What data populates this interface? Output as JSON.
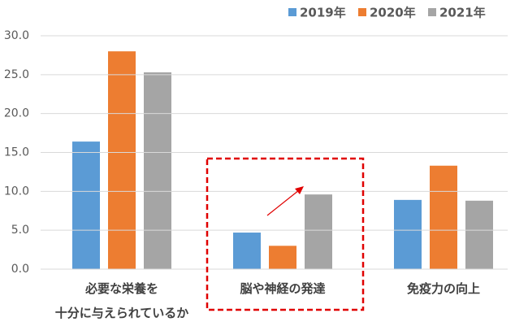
{
  "chart_data": {
    "type": "bar",
    "categories": [
      "必要な栄養を\n十分に与えられているか",
      "脳や神経の発達",
      "免疫力の向上"
    ],
    "series": [
      {
        "name": "2019年",
        "color": "#5B9BD5",
        "values": [
          16.4,
          4.7,
          8.9
        ]
      },
      {
        "name": "2020年",
        "color": "#ED7D31",
        "values": [
          28.0,
          3.0,
          13.3
        ]
      },
      {
        "name": "2021年",
        "color": "#A5A5A5",
        "values": [
          25.3,
          9.6,
          8.8
        ]
      }
    ],
    "ylim": [
      0,
      30
    ],
    "yticks": [
      {
        "value": 0,
        "label": "0.0"
      },
      {
        "value": 5,
        "label": "5.0"
      },
      {
        "value": 10,
        "label": "10.0"
      },
      {
        "value": 15,
        "label": "15.0"
      },
      {
        "value": 20,
        "label": "20.0"
      },
      {
        "value": 25,
        "label": "25.0"
      },
      {
        "value": 30,
        "label": "30.0"
      }
    ],
    "grid": true,
    "legend": "top-right"
  }
}
